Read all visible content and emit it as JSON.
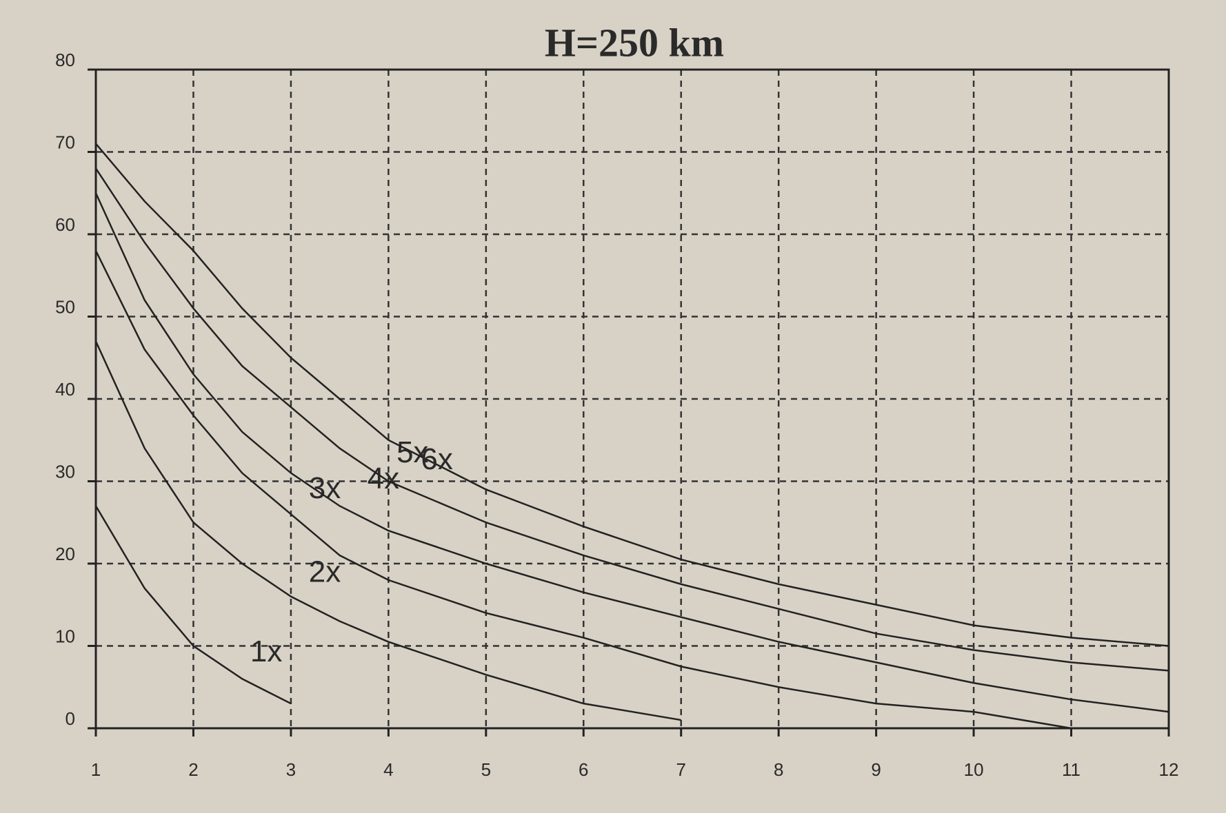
{
  "chart_data": {
    "type": "line",
    "title": "H=250 km",
    "xlim": [
      1,
      12
    ],
    "ylim": [
      0,
      80
    ],
    "xticks": [
      1,
      2,
      3,
      4,
      5,
      6,
      7,
      8,
      9,
      10,
      11,
      12
    ],
    "yticks": [
      0,
      10,
      20,
      30,
      40,
      50,
      60,
      70,
      80
    ],
    "grid": true,
    "series": [
      {
        "name": "1x",
        "color": "#222222",
        "x": [
          1,
          1.5,
          2,
          2.5,
          3
        ],
        "values": [
          27,
          17,
          10,
          6,
          3
        ]
      },
      {
        "name": "2x",
        "color": "#222222",
        "x": [
          1,
          1.5,
          2,
          2.5,
          3,
          3.5,
          4,
          5,
          6,
          7
        ],
        "values": [
          47,
          34,
          25,
          20,
          16,
          13,
          10.5,
          6.5,
          3,
          1
        ]
      },
      {
        "name": "3x",
        "color": "#222222",
        "x": [
          1,
          1.5,
          2,
          2.5,
          3,
          3.5,
          4,
          5,
          6,
          7,
          8,
          9,
          10,
          11
        ],
        "values": [
          58,
          46,
          38,
          31,
          26,
          21,
          18,
          14,
          11,
          7.5,
          5,
          3,
          2,
          0
        ]
      },
      {
        "name": "4x",
        "color": "#222222",
        "x": [
          1,
          1.5,
          2,
          2.5,
          3,
          3.5,
          4,
          5,
          6,
          7,
          8,
          9,
          10,
          11,
          12
        ],
        "values": [
          65,
          52,
          43,
          36,
          31,
          27,
          24,
          20,
          16.5,
          13.5,
          10.5,
          8,
          5.5,
          3.5,
          2
        ]
      },
      {
        "name": "5x",
        "color": "#222222",
        "x": [
          1,
          1.5,
          2,
          2.5,
          3,
          3.5,
          4,
          5,
          6,
          7,
          8,
          9,
          10,
          11,
          12
        ],
        "values": [
          68,
          59,
          51,
          44,
          39,
          34,
          30,
          25,
          21,
          17.5,
          14.5,
          11.5,
          9.5,
          8,
          7
        ]
      },
      {
        "name": "6x",
        "color": "#222222",
        "x": [
          1,
          1.5,
          2,
          2.5,
          3,
          3.5,
          4,
          5,
          6,
          7,
          8,
          9,
          10,
          11,
          12
        ],
        "values": [
          71,
          64,
          58,
          51,
          45,
          40,
          35,
          29,
          24.5,
          20.5,
          17.5,
          15,
          12.5,
          11,
          10
        ]
      }
    ]
  }
}
